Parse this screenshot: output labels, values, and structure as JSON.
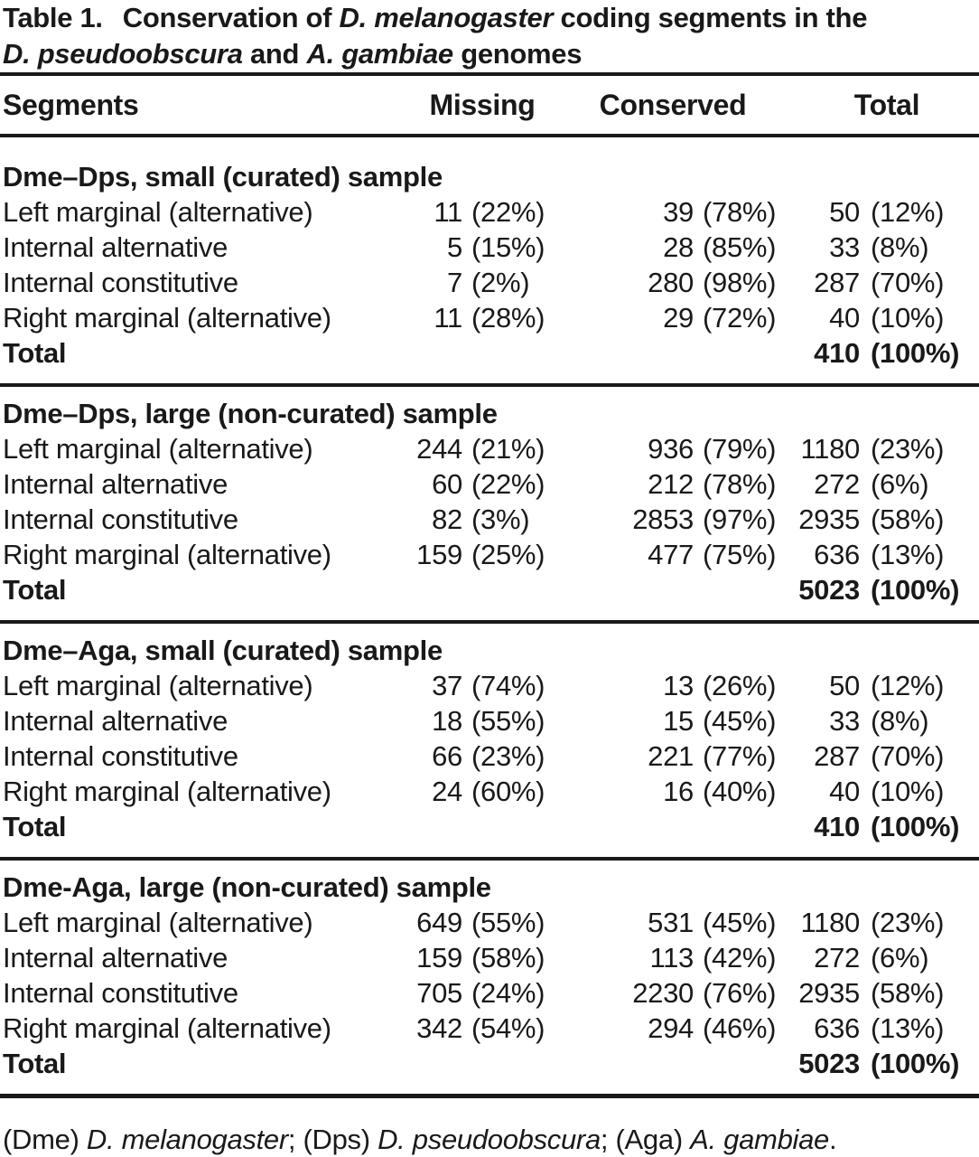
{
  "colors": {
    "text": "#191919",
    "background": "#ffffff",
    "rule": "#191919"
  },
  "caption": {
    "label": "Table 1.",
    "t1": "Conservation of ",
    "species1": "D. melanogaster",
    "t2": " coding segments in the",
    "species2": "D. pseudoobscura",
    "t3": " and ",
    "species3": "A. gambiae",
    "t4": " genomes"
  },
  "columns": {
    "segments": "Segments",
    "missing": "Missing",
    "conserved": "Conserved",
    "total": "Total"
  },
  "sections": [
    {
      "title": "Dme–Dps, small (curated) sample",
      "rows": [
        {
          "label": "Left marginal (alternative)",
          "missing_n": "11",
          "missing_pct": "(22%)",
          "conserved_n": "39",
          "conserved_pct": "(78%)",
          "total_n": "50",
          "total_pct": "(12%)"
        },
        {
          "label": "Internal alternative",
          "missing_n": "5",
          "missing_pct": "(15%)",
          "conserved_n": "28",
          "conserved_pct": "(85%)",
          "total_n": "33",
          "total_pct": "(8%)"
        },
        {
          "label": "Internal constitutive",
          "missing_n": "7",
          "missing_pct": "(2%)",
          "conserved_n": "280",
          "conserved_pct": "(98%)",
          "total_n": "287",
          "total_pct": "(70%)"
        },
        {
          "label": "Right marginal (alternative)",
          "missing_n": "11",
          "missing_pct": "(28%)",
          "conserved_n": "29",
          "conserved_pct": "(72%)",
          "total_n": "40",
          "total_pct": "(10%)"
        }
      ],
      "total": {
        "label": "Total",
        "total_n": "410",
        "total_pct": "(100%)"
      }
    },
    {
      "title": "Dme–Dps, large (non-curated) sample",
      "rows": [
        {
          "label": "Left marginal (alternative)",
          "missing_n": "244",
          "missing_pct": "(21%)",
          "conserved_n": "936",
          "conserved_pct": "(79%)",
          "total_n": "1180",
          "total_pct": "(23%)"
        },
        {
          "label": "Internal alternative",
          "missing_n": "60",
          "missing_pct": "(22%)",
          "conserved_n": "212",
          "conserved_pct": "(78%)",
          "total_n": "272",
          "total_pct": "(6%)"
        },
        {
          "label": "Internal constitutive",
          "missing_n": "82",
          "missing_pct": "(3%)",
          "conserved_n": "2853",
          "conserved_pct": "(97%)",
          "total_n": "2935",
          "total_pct": "(58%)"
        },
        {
          "label": "Right marginal (alternative)",
          "missing_n": "159",
          "missing_pct": "(25%)",
          "conserved_n": "477",
          "conserved_pct": "(75%)",
          "total_n": "636",
          "total_pct": "(13%)"
        }
      ],
      "total": {
        "label": "Total",
        "total_n": "5023",
        "total_pct": "(100%)"
      }
    },
    {
      "title": "Dme–Aga, small (curated) sample",
      "rows": [
        {
          "label": "Left marginal (alternative)",
          "missing_n": "37",
          "missing_pct": "(74%)",
          "conserved_n": "13",
          "conserved_pct": "(26%)",
          "total_n": "50",
          "total_pct": "(12%)"
        },
        {
          "label": "Internal alternative",
          "missing_n": "18",
          "missing_pct": "(55%)",
          "conserved_n": "15",
          "conserved_pct": "(45%)",
          "total_n": "33",
          "total_pct": "(8%)"
        },
        {
          "label": "Internal constitutive",
          "missing_n": "66",
          "missing_pct": "(23%)",
          "conserved_n": "221",
          "conserved_pct": "(77%)",
          "total_n": "287",
          "total_pct": "(70%)"
        },
        {
          "label": "Right marginal (alternative)",
          "missing_n": "24",
          "missing_pct": "(60%)",
          "conserved_n": "16",
          "conserved_pct": "(40%)",
          "total_n": "40",
          "total_pct": "(10%)"
        }
      ],
      "total": {
        "label": "Total",
        "total_n": "410",
        "total_pct": "(100%)"
      }
    },
    {
      "title": "Dme-Aga, large (non-curated) sample",
      "rows": [
        {
          "label": "Left marginal (alternative)",
          "missing_n": "649",
          "missing_pct": "(55%)",
          "conserved_n": "531",
          "conserved_pct": "(45%)",
          "total_n": "1180",
          "total_pct": "(23%)"
        },
        {
          "label": "Internal alternative",
          "missing_n": "159",
          "missing_pct": "(58%)",
          "conserved_n": "113",
          "conserved_pct": "(42%)",
          "total_n": "272",
          "total_pct": "(6%)"
        },
        {
          "label": "Internal constitutive",
          "missing_n": "705",
          "missing_pct": "(24%)",
          "conserved_n": "2230",
          "conserved_pct": "(76%)",
          "total_n": "2935",
          "total_pct": "(58%)"
        },
        {
          "label": "Right marginal (alternative)",
          "missing_n": "342",
          "missing_pct": "(54%)",
          "conserved_n": "294",
          "conserved_pct": "(46%)",
          "total_n": "636",
          "total_pct": "(13%)"
        }
      ],
      "total": {
        "label": "Total",
        "total_n": "5023",
        "total_pct": "(100%)"
      }
    }
  ],
  "footnote": {
    "f1": "(Dme) ",
    "species1": "D. melanogaster",
    "f2": "; (Dps) ",
    "species2": "D. pseudoobscura",
    "f3": "; (Aga) ",
    "species3": "A. gambiae",
    "f4": "."
  }
}
